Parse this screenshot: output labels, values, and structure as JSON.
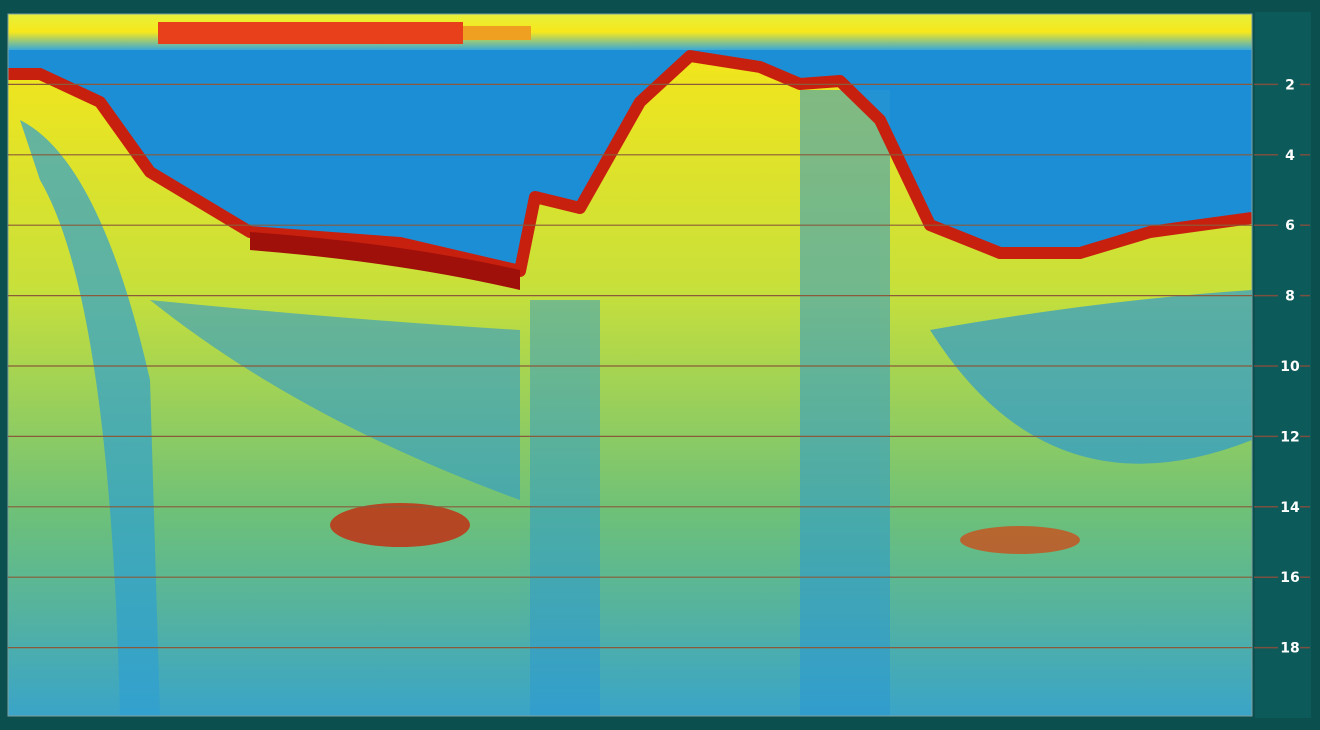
{
  "chart_data": {
    "type": "echogram",
    "ylim": [
      0,
      20
    ],
    "yinvert": true,
    "yticks": [
      2,
      4,
      6,
      8,
      10,
      12,
      14,
      16,
      18
    ],
    "grid": true
  }
}
